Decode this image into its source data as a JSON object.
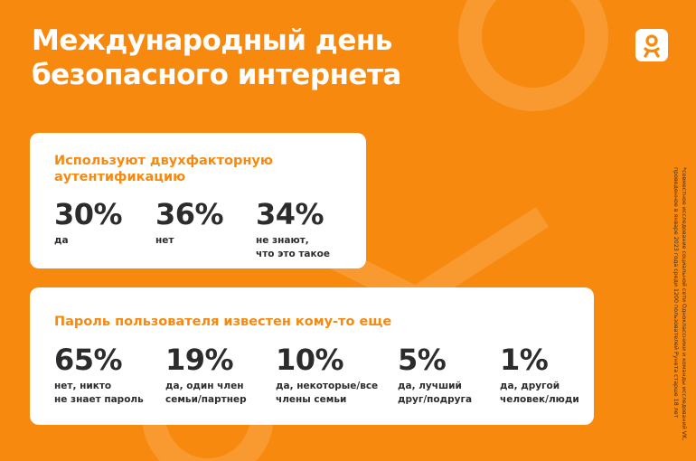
{
  "title": [
    "Международный день",
    "безопасного интернета"
  ],
  "cards": [
    {
      "heading": [
        "Используют двухфакторную",
        "аутентификацию"
      ],
      "stats": [
        {
          "value": "30%",
          "label": [
            "да"
          ]
        },
        {
          "value": "36%",
          "label": [
            "нет"
          ]
        },
        {
          "value": "34%",
          "label": [
            "не знают,",
            "что это такое"
          ]
        }
      ]
    },
    {
      "heading": [
        "Пароль пользователя известен кому-то еще"
      ],
      "stats": [
        {
          "value": "65%",
          "label": [
            "нет, никто",
            "не знает пароль"
          ]
        },
        {
          "value": "19%",
          "label": [
            "да, один член",
            "семьи/партнер"
          ]
        },
        {
          "value": "10%",
          "label": [
            "да, некоторые/все",
            "члены семьи"
          ]
        },
        {
          "value": "5%",
          "label": [
            "да, лучший",
            "друг/подруга"
          ]
        },
        {
          "value": "1%",
          "label": [
            "да, другой",
            "человек/люди"
          ]
        }
      ]
    }
  ],
  "footnote": [
    "*совместное исследование социальной сети Одноклассники и команды исследований VK,",
    "проведенное в январе 2023 года среди 1200 пользователей Рунета старше 18 лет"
  ]
}
